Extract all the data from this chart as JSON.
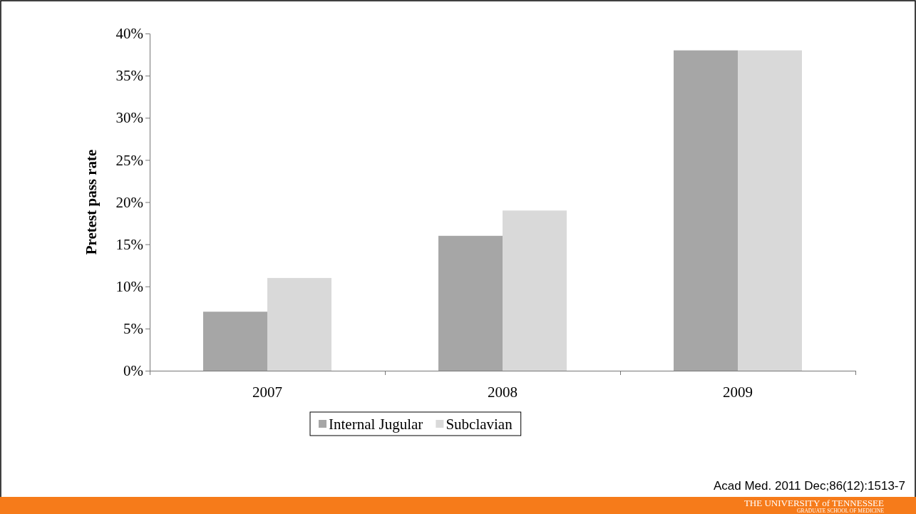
{
  "chart_data": {
    "type": "bar",
    "ylabel": "Pretest  pass rate",
    "categories": [
      "2007",
      "2008",
      "2009"
    ],
    "series": [
      {
        "name": "Internal Jugular",
        "color": "#a6a6a6",
        "values": [
          7,
          16,
          38
        ]
      },
      {
        "name": "Subclavian",
        "color": "#d9d9d9",
        "values": [
          11,
          19,
          38
        ]
      }
    ],
    "ylim": [
      0,
      40
    ],
    "yticks": [
      {
        "value": 0,
        "label": "0%"
      },
      {
        "value": 5,
        "label": "5%"
      },
      {
        "value": 10,
        "label": "10%"
      },
      {
        "value": 15,
        "label": "15%"
      },
      {
        "value": 20,
        "label": "20%"
      },
      {
        "value": 25,
        "label": "25%"
      },
      {
        "value": 30,
        "label": "30%"
      },
      {
        "value": 35,
        "label": "35%"
      },
      {
        "value": 40,
        "label": "40%"
      }
    ],
    "legend": "bottom",
    "grid": false,
    "annotations": [
      "Acad Med. 2011 Dec;86(12):1513-7",
      "THE UNIVERSITY of TENNESSEE",
      "GRADUATE SCHOOL OF MEDICINE"
    ]
  }
}
